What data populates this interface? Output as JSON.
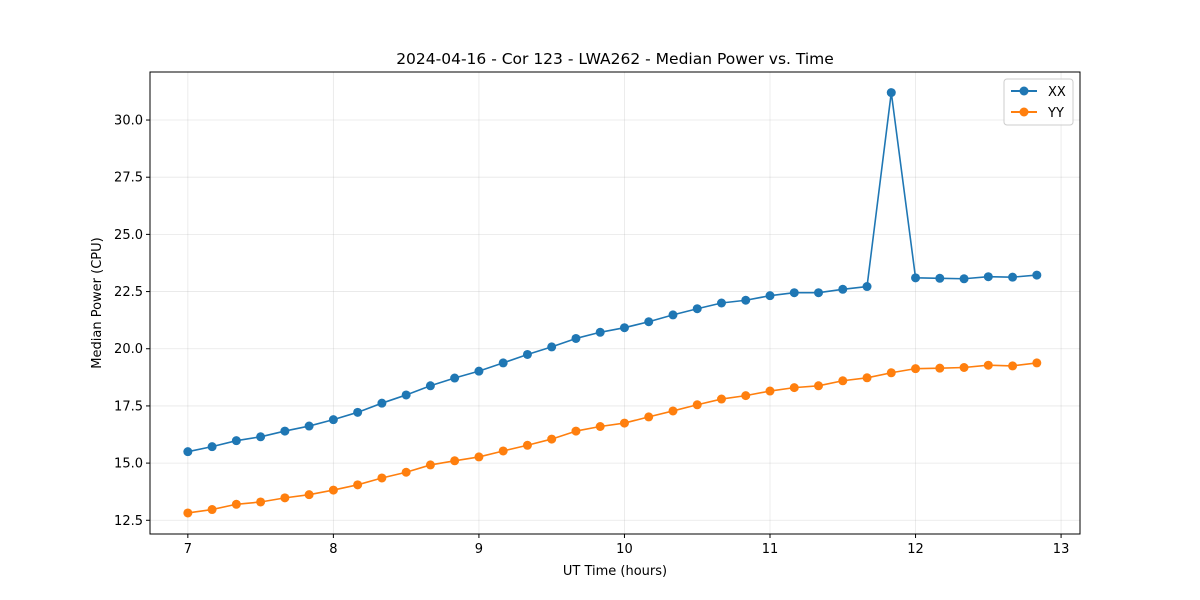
{
  "chart_data": {
    "type": "line",
    "title": "2024-04-16 - Cor 123 - LWA262 - Median Power vs. Time",
    "xlabel": "UT Time (hours)",
    "ylabel": "Median Power (CPU)",
    "xlim": [
      6.74,
      13.13
    ],
    "ylim": [
      11.9,
      32.1
    ],
    "xticks": [
      7,
      8,
      9,
      10,
      11,
      12,
      13
    ],
    "xtick_labels": [
      "7",
      "8",
      "9",
      "10",
      "11",
      "12",
      "13"
    ],
    "yticks": [
      12.5,
      15.0,
      17.5,
      20.0,
      22.5,
      25.0,
      27.5,
      30.0
    ],
    "ytick_labels": [
      "12.5",
      "15.0",
      "17.5",
      "20.0",
      "22.5",
      "25.0",
      "27.5",
      "30.0"
    ],
    "grid": true,
    "legend_position": "top-right",
    "x": [
      7.0,
      7.1667,
      7.3333,
      7.5,
      7.6667,
      7.8333,
      8.0,
      8.1667,
      8.3333,
      8.5,
      8.6667,
      8.8333,
      9.0,
      9.1667,
      9.3333,
      9.5,
      9.6667,
      9.8333,
      10.0,
      10.1667,
      10.3333,
      10.5,
      10.6667,
      10.8333,
      11.0,
      11.1667,
      11.3333,
      11.5,
      11.6667,
      11.8333,
      12.0,
      12.1667,
      12.3333,
      12.5,
      12.6667,
      12.8333
    ],
    "series": [
      {
        "name": "XX",
        "color": "#1f77b4",
        "values": [
          15.5,
          15.72,
          15.98,
          16.15,
          16.4,
          16.62,
          16.9,
          17.22,
          17.62,
          17.98,
          18.38,
          18.72,
          19.02,
          19.38,
          19.75,
          20.08,
          20.45,
          20.72,
          20.92,
          21.18,
          21.48,
          21.75,
          22.0,
          22.12,
          22.32,
          22.45,
          22.45,
          22.6,
          22.72,
          31.2,
          23.1,
          23.08,
          23.06,
          23.15,
          23.13,
          23.22
        ]
      },
      {
        "name": "YY",
        "color": "#ff7f0e",
        "values": [
          12.82,
          12.97,
          13.2,
          13.3,
          13.48,
          13.62,
          13.82,
          14.05,
          14.35,
          14.6,
          14.92,
          15.1,
          15.27,
          15.53,
          15.78,
          16.05,
          16.4,
          16.6,
          16.75,
          17.02,
          17.28,
          17.55,
          17.8,
          17.95,
          18.15,
          18.3,
          18.38,
          18.6,
          18.73,
          18.95,
          19.13,
          19.15,
          19.18,
          19.28,
          19.25,
          19.38
        ]
      }
    ]
  }
}
